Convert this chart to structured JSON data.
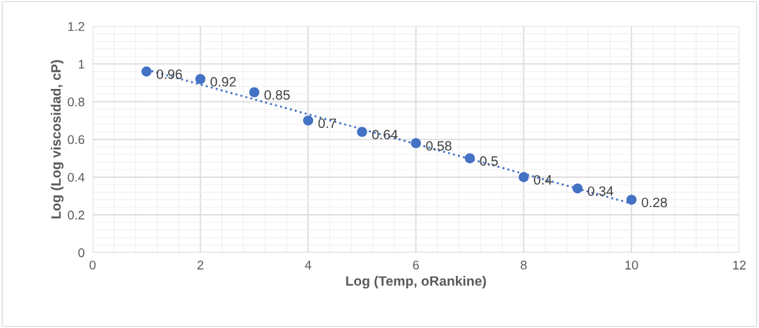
{
  "chart_data": {
    "type": "scatter",
    "xlabel": "Log (Temp, oRankine)",
    "ylabel": "Log (Log viscosidad, cP)",
    "series": [
      {
        "color": "#4472c4",
        "x": [
          1,
          2,
          3,
          4,
          5,
          6,
          7,
          8,
          9,
          10
        ],
        "values": [
          0.96,
          0.92,
          0.85,
          0.7,
          0.64,
          0.58,
          0.5,
          0.4,
          0.34,
          0.28
        ],
        "data_labels": true,
        "marker": "circle"
      },
      {
        "type": "line",
        "color": "#4472c4",
        "x": [
          1,
          10
        ],
        "values": [
          0.97,
          0.26
        ],
        "line_style": "dotted",
        "marker": "none"
      }
    ],
    "xlim": [
      0,
      12
    ],
    "xticks": [
      0,
      2,
      4,
      6,
      8,
      10,
      12
    ],
    "ylim": [
      0,
      1.2
    ],
    "yticks": [
      0,
      0.2,
      0.4,
      0.6,
      0.8,
      1,
      1.2
    ],
    "grid": true,
    "legend": false
  }
}
